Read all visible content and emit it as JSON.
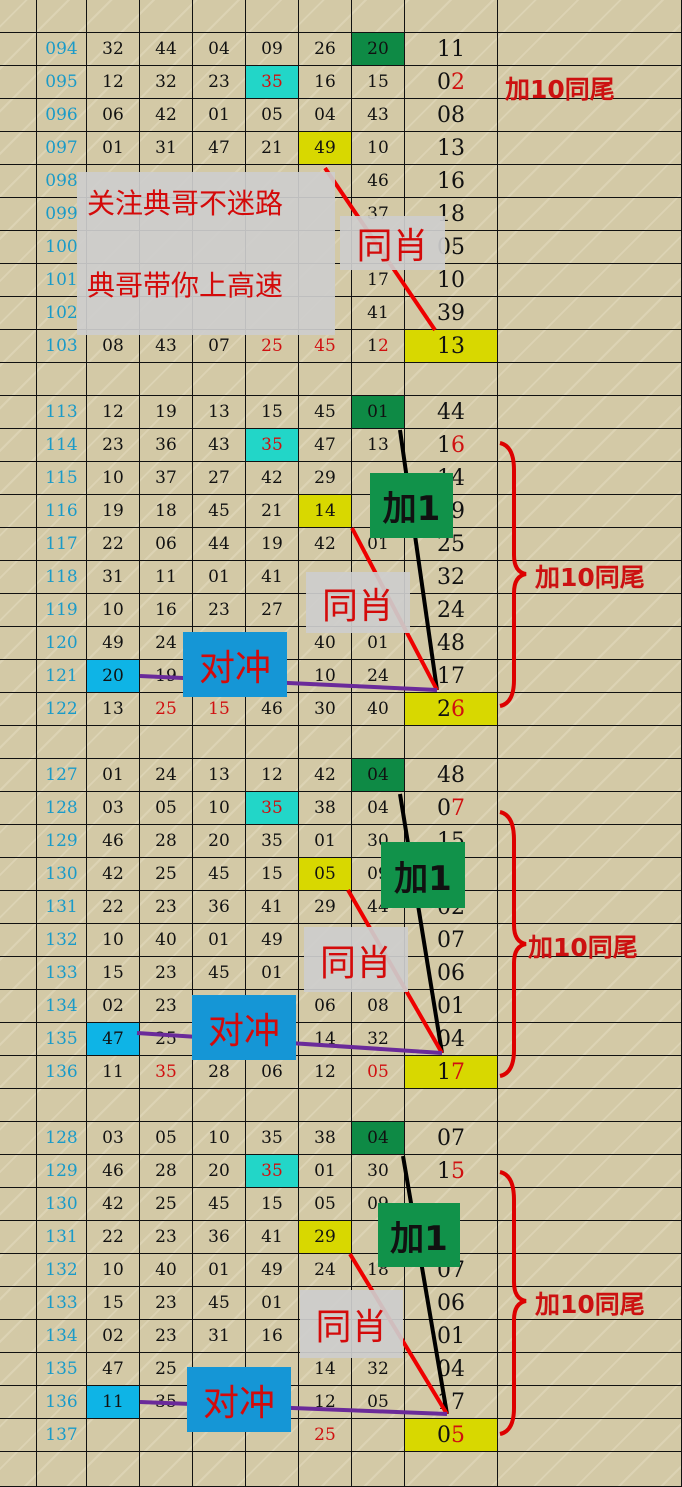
{
  "colors": {
    "green": "#0e8a45",
    "cyan": "#22d6c8",
    "yellow": "#d8d800",
    "blue": "#0eb4e6",
    "red_text": "#d01010",
    "issue_text": "#1a9ac8"
  },
  "sections": [
    {
      "rows": [
        {
          "issue": "094",
          "nums": [
            "32",
            "44",
            "04",
            "09",
            "26",
            "20"
          ],
          "special": "11",
          "hl": {
            "5": "green"
          }
        },
        {
          "issue": "095",
          "nums": [
            "12",
            "32",
            "23",
            "35",
            "16",
            "15"
          ],
          "special": "02",
          "red_tail": true,
          "red": [
            3
          ],
          "hl": {
            "3": "cyan"
          }
        },
        {
          "issue": "096",
          "nums": [
            "06",
            "42",
            "01",
            "05",
            "04",
            "43"
          ],
          "special": "08"
        },
        {
          "issue": "097",
          "nums": [
            "01",
            "31",
            "47",
            "21",
            "49",
            "10"
          ],
          "special": "13",
          "hl": {
            "4": "yellow"
          }
        },
        {
          "issue": "098",
          "nums": [
            "",
            "",
            "",
            "",
            "",
            "46"
          ],
          "special": "16"
        },
        {
          "issue": "099",
          "nums": [
            "",
            "",
            "",
            "",
            "",
            "37"
          ],
          "special": "18"
        },
        {
          "issue": "100",
          "nums": [
            "",
            "",
            "",
            "",
            "",
            ""
          ],
          "special": "05"
        },
        {
          "issue": "101",
          "nums": [
            "",
            "",
            "",
            "",
            "",
            "17"
          ],
          "special": "10"
        },
        {
          "issue": "102",
          "nums": [
            "",
            "",
            "",
            "",
            "",
            "41"
          ],
          "special": "39"
        },
        {
          "issue": "103",
          "nums": [
            "08",
            "43",
            "07",
            "25",
            "45",
            "12"
          ],
          "special": "13",
          "red": [
            3,
            4
          ],
          "red_tail_cols": [
            5
          ],
          "hl": {
            "special": "yellow"
          }
        }
      ]
    },
    {
      "rows": [
        {
          "issue": "113",
          "nums": [
            "12",
            "19",
            "13",
            "15",
            "45",
            "01"
          ],
          "special": "44",
          "hl": {
            "5": "green"
          }
        },
        {
          "issue": "114",
          "nums": [
            "23",
            "36",
            "43",
            "35",
            "47",
            "13"
          ],
          "special": "16",
          "red_tail": true,
          "red": [
            3
          ],
          "hl": {
            "3": "cyan"
          }
        },
        {
          "issue": "115",
          "nums": [
            "10",
            "37",
            "27",
            "42",
            "29",
            ""
          ],
          "special": "14"
        },
        {
          "issue": "116",
          "nums": [
            "19",
            "18",
            "45",
            "21",
            "14",
            ""
          ],
          "special": "19",
          "hl": {
            "4": "yellow"
          }
        },
        {
          "issue": "117",
          "nums": [
            "22",
            "06",
            "44",
            "19",
            "42",
            "01"
          ],
          "special": "25"
        },
        {
          "issue": "118",
          "nums": [
            "31",
            "11",
            "01",
            "41",
            "",
            ""
          ],
          "special": "32"
        },
        {
          "issue": "119",
          "nums": [
            "10",
            "16",
            "23",
            "27",
            "",
            ""
          ],
          "special": "24"
        },
        {
          "issue": "120",
          "nums": [
            "49",
            "24",
            "",
            "",
            "40",
            "01"
          ],
          "special": "48"
        },
        {
          "issue": "121",
          "nums": [
            "20",
            "19",
            "",
            "",
            "10",
            "24"
          ],
          "special": "17",
          "hl": {
            "0": "blue"
          }
        },
        {
          "issue": "122",
          "nums": [
            "13",
            "25",
            "15",
            "46",
            "30",
            "40"
          ],
          "special": "26",
          "red_tail": true,
          "red": [
            1,
            2
          ],
          "hl": {
            "special": "yellow"
          }
        }
      ]
    },
    {
      "rows": [
        {
          "issue": "127",
          "nums": [
            "01",
            "24",
            "13",
            "12",
            "42",
            "04"
          ],
          "special": "48",
          "hl": {
            "5": "green"
          }
        },
        {
          "issue": "128",
          "nums": [
            "03",
            "05",
            "10",
            "35",
            "38",
            "04"
          ],
          "special": "07",
          "red_tail": true,
          "red": [
            3
          ],
          "hl": {
            "3": "cyan"
          }
        },
        {
          "issue": "129",
          "nums": [
            "46",
            "28",
            "20",
            "35",
            "01",
            "30"
          ],
          "special": "15"
        },
        {
          "issue": "130",
          "nums": [
            "42",
            "25",
            "45",
            "15",
            "05",
            "09"
          ],
          "special": "",
          "hl": {
            "4": "yellow"
          }
        },
        {
          "issue": "131",
          "nums": [
            "22",
            "23",
            "36",
            "41",
            "29",
            "44"
          ],
          "special": "02"
        },
        {
          "issue": "132",
          "nums": [
            "10",
            "40",
            "01",
            "49",
            "",
            ""
          ],
          "special": "07"
        },
        {
          "issue": "133",
          "nums": [
            "15",
            "23",
            "45",
            "01",
            "",
            ""
          ],
          "special": "06"
        },
        {
          "issue": "134",
          "nums": [
            "02",
            "23",
            "",
            "",
            "06",
            "08"
          ],
          "special": "01"
        },
        {
          "issue": "135",
          "nums": [
            "47",
            "25",
            "",
            "",
            "14",
            "32"
          ],
          "special": "04",
          "hl": {
            "0": "blue"
          }
        },
        {
          "issue": "136",
          "nums": [
            "11",
            "35",
            "28",
            "06",
            "12",
            "05"
          ],
          "special": "17",
          "red_tail": true,
          "red": [
            1,
            5
          ],
          "hl": {
            "special": "yellow"
          }
        }
      ]
    },
    {
      "rows": [
        {
          "issue": "128",
          "nums": [
            "03",
            "05",
            "10",
            "35",
            "38",
            "04"
          ],
          "special": "07",
          "hl": {
            "5": "green"
          }
        },
        {
          "issue": "129",
          "nums": [
            "46",
            "28",
            "20",
            "35",
            "01",
            "30"
          ],
          "special": "15",
          "red_tail": true,
          "red": [
            3
          ],
          "hl": {
            "3": "cyan"
          }
        },
        {
          "issue": "130",
          "nums": [
            "42",
            "25",
            "45",
            "15",
            "05",
            "09"
          ],
          "special": ""
        },
        {
          "issue": "131",
          "nums": [
            "22",
            "23",
            "36",
            "41",
            "29",
            ""
          ],
          "special": "",
          "hl": {
            "4": "yellow"
          }
        },
        {
          "issue": "132",
          "nums": [
            "10",
            "40",
            "01",
            "49",
            "24",
            "18"
          ],
          "special": "07"
        },
        {
          "issue": "133",
          "nums": [
            "15",
            "23",
            "45",
            "01",
            "",
            ""
          ],
          "special": "06"
        },
        {
          "issue": "134",
          "nums": [
            "02",
            "23",
            "31",
            "16",
            "",
            ""
          ],
          "special": "01"
        },
        {
          "issue": "135",
          "nums": [
            "47",
            "25",
            "",
            "",
            "14",
            "32"
          ],
          "special": "04"
        },
        {
          "issue": "136",
          "nums": [
            "11",
            "35",
            "",
            "",
            "12",
            "05"
          ],
          "special": "17",
          "hl": {
            "0": "blue"
          }
        },
        {
          "issue": "137",
          "nums": [
            "",
            "",
            "",
            "",
            "25",
            ""
          ],
          "special": "05",
          "red_tail": true,
          "red": [
            4
          ],
          "hl": {
            "special": "yellow"
          }
        }
      ]
    }
  ],
  "annotations": {
    "note_line1": "关注典哥不迷路",
    "note_line2": "典哥带你上高速",
    "same_zodiac": "同肖",
    "plus_one": "加1",
    "opposite": "对冲",
    "plus10_same_tail": "加10同尾"
  }
}
